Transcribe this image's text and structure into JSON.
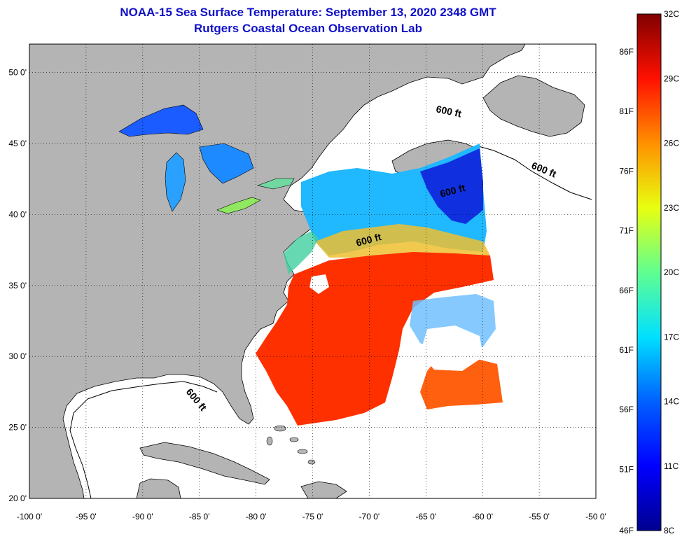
{
  "title": "NOAA-15 Sea Surface Temperature:  September 13, 2020 2348 GMT",
  "subtitle": "Rutgers Coastal Ocean Observation Lab",
  "map": {
    "lon_range": [
      -100,
      -50
    ],
    "lat_range": [
      20,
      52
    ],
    "lon_ticks": [
      "-100 0'",
      "-95 0'",
      "-90 0'",
      "-85 0'",
      "-80 0'",
      "-75 0'",
      "-70 0'",
      "-65 0'",
      "-60 0'",
      "-55 0'",
      "-50 0'"
    ],
    "lat_ticks": [
      "20 0'",
      "25 0'",
      "30 0'",
      "35 0'",
      "40 0'",
      "45 0'",
      "50 0'"
    ],
    "grid": "dotted",
    "land_color": "#b4b4b4",
    "ocean_no_data_color": "#ffffff",
    "contour_labels": [
      "600 ft",
      "600 ft",
      "600 ft",
      "600 ft",
      "600 ft"
    ]
  },
  "colorbar": {
    "fahrenheit_labels": [
      "86F",
      "81F",
      "76F",
      "71F",
      "66F",
      "61F",
      "56F",
      "51F",
      "46F"
    ],
    "celsius_labels": [
      "32C",
      "29C",
      "26C",
      "23C",
      "20C",
      "17C",
      "14C",
      "11C",
      "8C"
    ],
    "range_celsius": [
      8,
      32
    ],
    "colormap": [
      "#00008f",
      "#0000ff",
      "#0080ff",
      "#00ffff",
      "#80ff80",
      "#ffff00",
      "#ff8000",
      "#ff0000",
      "#800000"
    ]
  }
}
